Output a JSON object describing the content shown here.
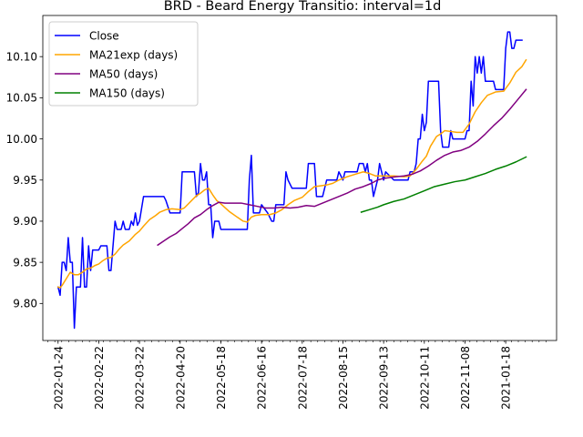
{
  "chart_data": {
    "type": "line",
    "title": "BRD - Beard Energy Transitio: interval=1d",
    "xlabel": "",
    "ylabel": "",
    "x_tick_labels": [
      "2022-01-24",
      "2022-02-22",
      "2022-03-22",
      "2022-04-20",
      "2022-05-18",
      "2022-06-16",
      "2022-07-18",
      "2022-08-15",
      "2022-09-13",
      "2022-10-11",
      "2022-11-08",
      "2021-01-18"
    ],
    "y_ticks": [
      "9.80",
      "9.85",
      "9.90",
      "9.95",
      "10.00",
      "10.05",
      "10.10"
    ],
    "ylim": [
      9.755,
      10.15
    ],
    "xlim": [
      -7.5,
      245
    ],
    "legend_position": "upper left",
    "series": [
      {
        "name": "Close",
        "color": "#0000ff",
        "points": [
          [
            0,
            9.82
          ],
          [
            1,
            9.81
          ],
          [
            2,
            9.85
          ],
          [
            3,
            9.85
          ],
          [
            4,
            9.84
          ],
          [
            5,
            9.88
          ],
          [
            6,
            9.85
          ],
          [
            7,
            9.85
          ],
          [
            8,
            9.77
          ],
          [
            9,
            9.82
          ],
          [
            11,
            9.82
          ],
          [
            12,
            9.88
          ],
          [
            13,
            9.82
          ],
          [
            14,
            9.82
          ],
          [
            15,
            9.87
          ],
          [
            16,
            9.84
          ],
          [
            17,
            9.865
          ],
          [
            20,
            9.865
          ],
          [
            21,
            9.87
          ],
          [
            24,
            9.87
          ],
          [
            25,
            9.84
          ],
          [
            26,
            9.84
          ],
          [
            28,
            9.9
          ],
          [
            29,
            9.89
          ],
          [
            31,
            9.89
          ],
          [
            32,
            9.9
          ],
          [
            33,
            9.89
          ],
          [
            35,
            9.89
          ],
          [
            36,
            9.9
          ],
          [
            37,
            9.895
          ],
          [
            38,
            9.91
          ],
          [
            39,
            9.895
          ],
          [
            40,
            9.9
          ],
          [
            42,
            9.93
          ],
          [
            52,
            9.93
          ],
          [
            53,
            9.925
          ],
          [
            55,
            9.91
          ],
          [
            60,
            9.91
          ],
          [
            61,
            9.96
          ],
          [
            67,
            9.96
          ],
          [
            68,
            9.93
          ],
          [
            69,
            9.935
          ],
          [
            70,
            9.97
          ],
          [
            71,
            9.95
          ],
          [
            72,
            9.95
          ],
          [
            73,
            9.96
          ],
          [
            74,
            9.92
          ],
          [
            75,
            9.92
          ],
          [
            76,
            9.88
          ],
          [
            77,
            9.9
          ],
          [
            79,
            9.9
          ],
          [
            80,
            9.89
          ],
          [
            86,
            9.89
          ],
          [
            93,
            9.89
          ],
          [
            94,
            9.95
          ],
          [
            95,
            9.98
          ],
          [
            96,
            9.91
          ],
          [
            99,
            9.91
          ],
          [
            100,
            9.92
          ],
          [
            103,
            9.91
          ],
          [
            105,
            9.9
          ],
          [
            106,
            9.9
          ],
          [
            107,
            9.92
          ],
          [
            111,
            9.92
          ],
          [
            112,
            9.96
          ],
          [
            113,
            9.95
          ],
          [
            115,
            9.94
          ],
          [
            122,
            9.94
          ],
          [
            123,
            9.97
          ],
          [
            126,
            9.97
          ],
          [
            127,
            9.93
          ],
          [
            130,
            9.93
          ],
          [
            132,
            9.95
          ],
          [
            137,
            9.95
          ],
          [
            138,
            9.96
          ],
          [
            140,
            9.95
          ],
          [
            141,
            9.96
          ],
          [
            147,
            9.96
          ],
          [
            148,
            9.97
          ],
          [
            150,
            9.97
          ],
          [
            151,
            9.96
          ],
          [
            152,
            9.97
          ],
          [
            153,
            9.95
          ],
          [
            154,
            9.95
          ],
          [
            155,
            9.93
          ],
          [
            157,
            9.95
          ],
          [
            158,
            9.97
          ],
          [
            160,
            9.95
          ],
          [
            161,
            9.96
          ],
          [
            165,
            9.95
          ],
          [
            172,
            9.95
          ],
          [
            173,
            9.96
          ],
          [
            175,
            9.96
          ],
          [
            176,
            9.97
          ],
          [
            177,
            10.0
          ],
          [
            178,
            10.0
          ],
          [
            179,
            10.03
          ],
          [
            180,
            10.01
          ],
          [
            181,
            10.02
          ],
          [
            182,
            10.07
          ],
          [
            187,
            10.07
          ],
          [
            188,
            10.01
          ],
          [
            189,
            9.99
          ],
          [
            192,
            9.99
          ],
          [
            193,
            10.01
          ],
          [
            194,
            10.0
          ],
          [
            200,
            10.0
          ],
          [
            201,
            10.01
          ],
          [
            202,
            10.01
          ],
          [
            203,
            10.07
          ],
          [
            204,
            10.04
          ],
          [
            205,
            10.1
          ],
          [
            206,
            10.08
          ],
          [
            207,
            10.1
          ],
          [
            208,
            10.08
          ],
          [
            209,
            10.1
          ],
          [
            210,
            10.07
          ],
          [
            214,
            10.07
          ],
          [
            215,
            10.06
          ],
          [
            219,
            10.06
          ],
          [
            220,
            10.11
          ],
          [
            221,
            10.13
          ],
          [
            222,
            10.13
          ],
          [
            223,
            10.11
          ],
          [
            224,
            10.11
          ],
          [
            225,
            10.12
          ],
          [
            228,
            10.12
          ]
        ]
      },
      {
        "name": "MA21exp (days)",
        "color": "#ffa500",
        "points": [
          [
            0,
            9.82
          ],
          [
            1,
            9.819
          ],
          [
            2,
            9.822
          ],
          [
            3,
            9.826
          ],
          [
            4,
            9.83
          ],
          [
            6,
            9.838
          ],
          [
            8,
            9.835
          ],
          [
            10,
            9.835
          ],
          [
            12,
            9.838
          ],
          [
            14,
            9.842
          ],
          [
            16,
            9.843
          ],
          [
            18,
            9.846
          ],
          [
            20,
            9.848
          ],
          [
            22,
            9.852
          ],
          [
            24,
            9.855
          ],
          [
            26,
            9.856
          ],
          [
            28,
            9.86
          ],
          [
            30,
            9.866
          ],
          [
            32,
            9.871
          ],
          [
            35,
            9.876
          ],
          [
            38,
            9.884
          ],
          [
            40,
            9.888
          ],
          [
            42,
            9.894
          ],
          [
            45,
            9.902
          ],
          [
            48,
            9.907
          ],
          [
            50,
            9.911
          ],
          [
            53,
            9.914
          ],
          [
            56,
            9.915
          ],
          [
            60,
            9.914
          ],
          [
            62,
            9.916
          ],
          [
            64,
            9.921
          ],
          [
            66,
            9.926
          ],
          [
            68,
            9.931
          ],
          [
            70,
            9.934
          ],
          [
            72,
            9.938
          ],
          [
            74,
            9.94
          ],
          [
            76,
            9.932
          ],
          [
            78,
            9.925
          ],
          [
            80,
            9.921
          ],
          [
            84,
            9.912
          ],
          [
            88,
            9.905
          ],
          [
            91,
            9.9
          ],
          [
            93,
            9.899
          ],
          [
            95,
            9.905
          ],
          [
            97,
            9.907
          ],
          [
            100,
            9.908
          ],
          [
            104,
            9.908
          ],
          [
            107,
            9.91
          ],
          [
            110,
            9.914
          ],
          [
            113,
            9.92
          ],
          [
            116,
            9.925
          ],
          [
            120,
            9.929
          ],
          [
            123,
            9.936
          ],
          [
            126,
            9.942
          ],
          [
            129,
            9.943
          ],
          [
            132,
            9.944
          ],
          [
            135,
            9.946
          ],
          [
            138,
            9.95
          ],
          [
            142,
            9.954
          ],
          [
            146,
            9.957
          ],
          [
            150,
            9.96
          ],
          [
            153,
            9.958
          ],
          [
            156,
            9.955
          ],
          [
            160,
            9.955
          ],
          [
            165,
            9.955
          ],
          [
            170,
            9.954
          ],
          [
            173,
            9.955
          ],
          [
            176,
            9.963
          ],
          [
            179,
            9.973
          ],
          [
            181,
            9.979
          ],
          [
            183,
            9.991
          ],
          [
            186,
            10.003
          ],
          [
            188,
            10.006
          ],
          [
            190,
            10.01
          ],
          [
            193,
            10.009
          ],
          [
            196,
            10.008
          ],
          [
            199,
            10.008
          ],
          [
            202,
            10.018
          ],
          [
            205,
            10.033
          ],
          [
            208,
            10.044
          ],
          [
            211,
            10.053
          ],
          [
            215,
            10.057
          ],
          [
            219,
            10.058
          ],
          [
            222,
            10.068
          ],
          [
            225,
            10.081
          ],
          [
            228,
            10.088
          ],
          [
            230,
            10.096
          ]
        ]
      },
      {
        "name": "MA50 (days)",
        "color": "#800080",
        "points": [
          [
            49,
            9.871
          ],
          [
            52,
            9.876
          ],
          [
            55,
            9.881
          ],
          [
            58,
            9.885
          ],
          [
            61,
            9.891
          ],
          [
            64,
            9.897
          ],
          [
            67,
            9.904
          ],
          [
            70,
            9.908
          ],
          [
            73,
            9.914
          ],
          [
            76,
            9.919
          ],
          [
            79,
            9.923
          ],
          [
            82,
            9.922
          ],
          [
            86,
            9.922
          ],
          [
            90,
            9.922
          ],
          [
            94,
            9.92
          ],
          [
            98,
            9.918
          ],
          [
            102,
            9.916
          ],
          [
            106,
            9.916
          ],
          [
            110,
            9.917
          ],
          [
            114,
            9.916
          ],
          [
            118,
            9.917
          ],
          [
            122,
            9.919
          ],
          [
            126,
            9.918
          ],
          [
            130,
            9.922
          ],
          [
            134,
            9.926
          ],
          [
            138,
            9.93
          ],
          [
            142,
            9.934
          ],
          [
            146,
            9.939
          ],
          [
            150,
            9.942
          ],
          [
            154,
            9.946
          ],
          [
            157,
            9.95
          ],
          [
            160,
            9.952
          ],
          [
            163,
            9.953
          ],
          [
            166,
            9.954
          ],
          [
            170,
            9.955
          ],
          [
            174,
            9.957
          ],
          [
            178,
            9.961
          ],
          [
            182,
            9.967
          ],
          [
            186,
            9.974
          ],
          [
            190,
            9.98
          ],
          [
            194,
            9.984
          ],
          [
            198,
            9.986
          ],
          [
            202,
            9.99
          ],
          [
            206,
            9.997
          ],
          [
            210,
            10.006
          ],
          [
            214,
            10.016
          ],
          [
            218,
            10.025
          ],
          [
            222,
            10.036
          ],
          [
            226,
            10.048
          ],
          [
            230,
            10.06
          ]
        ]
      },
      {
        "name": "MA150 (days)",
        "color": "#008000",
        "points": [
          [
            149,
            9.911
          ],
          [
            153,
            9.914
          ],
          [
            157,
            9.917
          ],
          [
            160,
            9.92
          ],
          [
            165,
            9.924
          ],
          [
            170,
            9.927
          ],
          [
            175,
            9.932
          ],
          [
            180,
            9.937
          ],
          [
            185,
            9.942
          ],
          [
            190,
            9.945
          ],
          [
            195,
            9.948
          ],
          [
            200,
            9.95
          ],
          [
            205,
            9.954
          ],
          [
            210,
            9.958
          ],
          [
            215,
            9.963
          ],
          [
            220,
            9.967
          ],
          [
            225,
            9.972
          ],
          [
            230,
            9.978
          ]
        ]
      }
    ]
  }
}
